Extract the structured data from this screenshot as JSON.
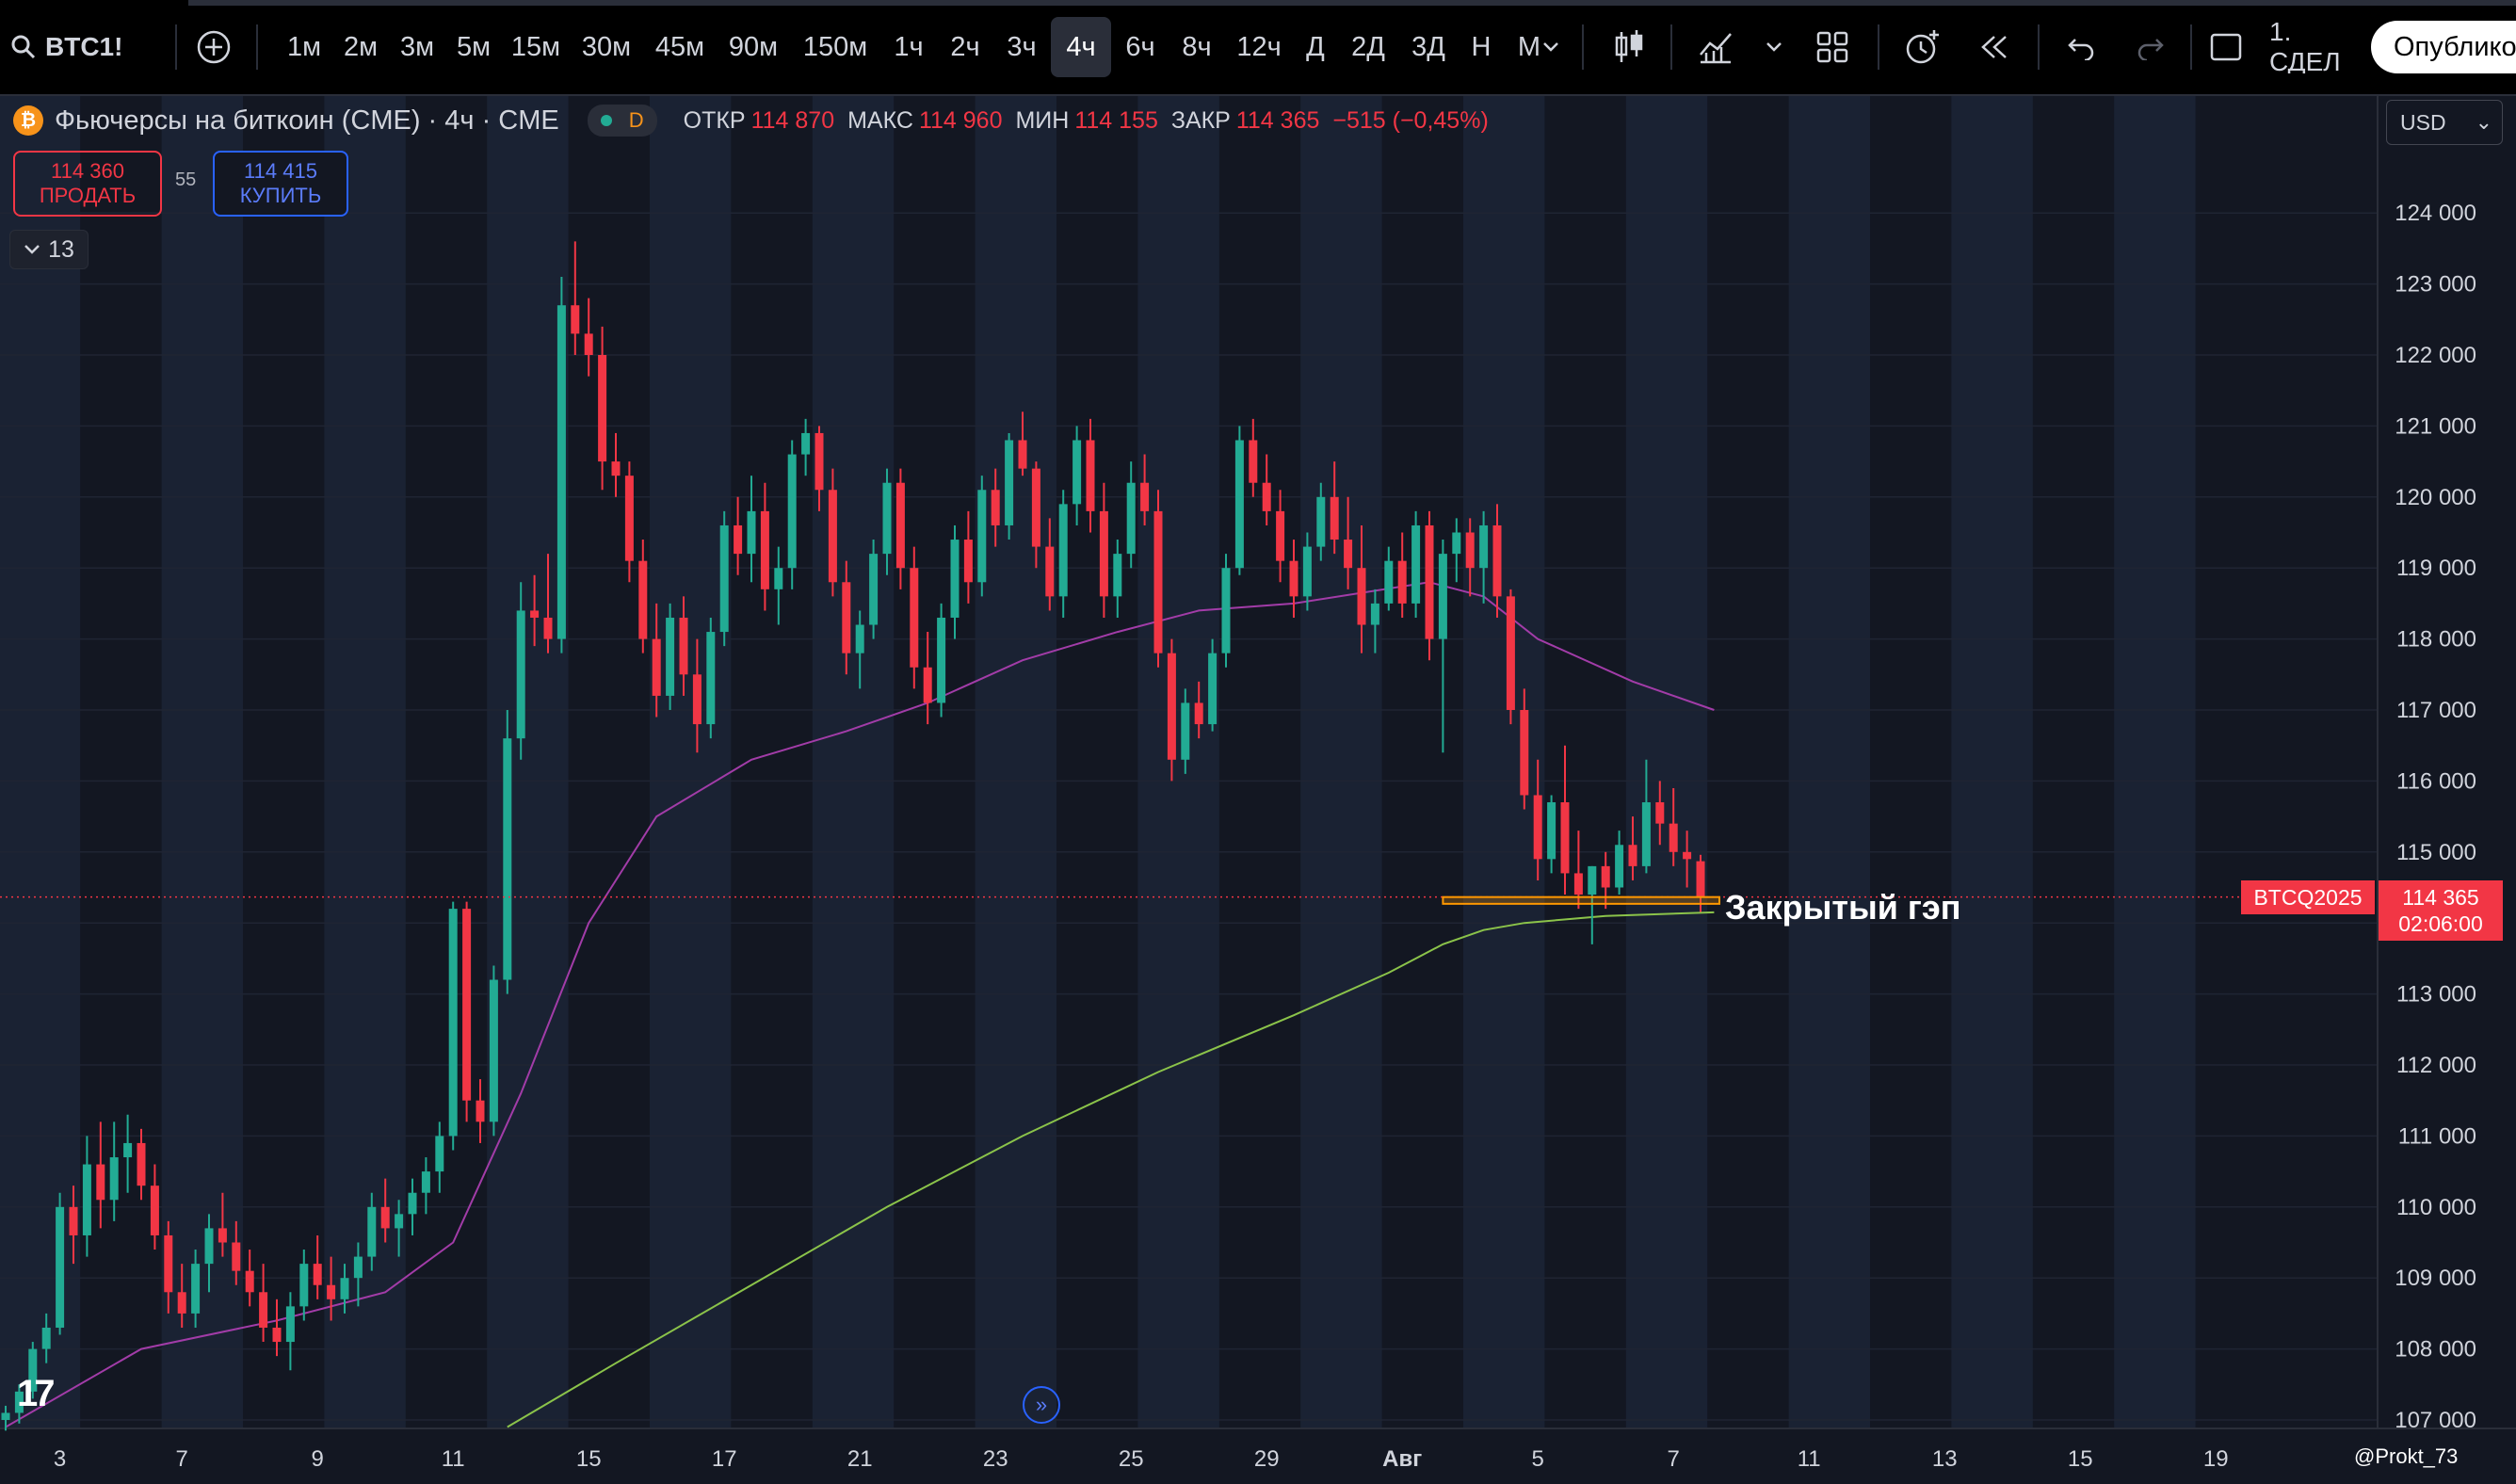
{
  "toolbar": {
    "symbol": "BTC1!",
    "timeframes": [
      "1м",
      "2м",
      "3м",
      "5м",
      "15м",
      "30м",
      "45м",
      "90м",
      "150м",
      "1ч",
      "2ч",
      "3ч",
      "4ч",
      "6ч",
      "8ч",
      "12ч",
      "Д",
      "2Д",
      "3Д",
      "Н",
      "М"
    ],
    "active_timeframe": "4ч",
    "layout_label": "1. СДЕЛ",
    "publish_label": "Опублико"
  },
  "legend": {
    "title": "Фьючерсы на биткоин (CME) · 4ч · CME",
    "session": "D",
    "open_label": "ОТКР",
    "open": "114 870",
    "high_label": "МАКС",
    "high": "114 960",
    "low_label": "МИН",
    "low": "114 155",
    "close_label": "ЗАКР",
    "close": "114 365",
    "change": "−515 (−0,45%)"
  },
  "trade": {
    "sell_price": "114 360",
    "sell_label": "ПРОДАТЬ",
    "spread": "55",
    "buy_price": "114 415",
    "buy_label": "КУПИТЬ"
  },
  "indicators_count": "13",
  "currency": "USD",
  "price_scale": {
    "symbol_tag": "BTCQ2025",
    "last_price": "114 365",
    "countdown": "02:06:00"
  },
  "annotation": "Закрытый гэп",
  "watermark": "@Prokt_73",
  "colors": {
    "up": "#22ab94",
    "down": "#f23645",
    "background": "#131722",
    "sma_fast": "#a23ca8",
    "sma_slow": "#8bc34a",
    "gap_box": "#ff9800"
  },
  "chart_data": {
    "type": "candlestick",
    "series_name": "BTC1!",
    "yticks": [
      107000,
      108000,
      109000,
      110000,
      111000,
      112000,
      113000,
      114000,
      115000,
      116000,
      117000,
      118000,
      119000,
      120000,
      121000,
      122000,
      123000,
      124000
    ],
    "ytick_labels": [
      "107 000",
      "108 000",
      "109 000",
      "110 000",
      "111 000",
      "112 000",
      "113 000",
      "",
      "115 000",
      "116 000",
      "117 000",
      "118 000",
      "119 000",
      "120 000",
      "121 000",
      "122 000",
      "123 000",
      "124 000"
    ],
    "xtick_labels": [
      {
        "i": 4,
        "label": "3"
      },
      {
        "i": 13,
        "label": "7"
      },
      {
        "i": 23,
        "label": "9"
      },
      {
        "i": 33,
        "label": "11"
      },
      {
        "i": 43,
        "label": "15"
      },
      {
        "i": 53,
        "label": "17"
      },
      {
        "i": 63,
        "label": "21"
      },
      {
        "i": 73,
        "label": "23"
      },
      {
        "i": 83,
        "label": "25"
      },
      {
        "i": 93,
        "label": "29"
      },
      {
        "i": 103,
        "label": "Авг"
      },
      {
        "i": 113,
        "label": "5"
      },
      {
        "i": 123,
        "label": "7"
      },
      {
        "i": 133,
        "label": "11"
      },
      {
        "i": 143,
        "label": "13"
      },
      {
        "i": 153,
        "label": "15"
      },
      {
        "i": 163,
        "label": "19"
      }
    ],
    "last_price": 114365,
    "gap_zone": {
      "from": 114270,
      "to": 114365
    },
    "candles": [
      [
        107000,
        107200,
        106850,
        107100
      ],
      [
        107100,
        107500,
        106950,
        107400
      ],
      [
        107400,
        108100,
        107300,
        108000
      ],
      [
        108000,
        108500,
        107800,
        108300
      ],
      [
        108300,
        110200,
        108200,
        110000
      ],
      [
        110000,
        110300,
        109200,
        109600
      ],
      [
        109600,
        111000,
        109300,
        110600
      ],
      [
        110600,
        111200,
        109700,
        110100
      ],
      [
        110100,
        111200,
        109800,
        110700
      ],
      [
        110700,
        111300,
        110200,
        110900
      ],
      [
        110900,
        111100,
        110100,
        110300
      ],
      [
        110300,
        110600,
        109400,
        109600
      ],
      [
        109600,
        109800,
        108500,
        108800
      ],
      [
        108800,
        109200,
        108300,
        108500
      ],
      [
        108500,
        109400,
        108300,
        109200
      ],
      [
        109200,
        109900,
        108800,
        109700
      ],
      [
        109700,
        110200,
        109300,
        109500
      ],
      [
        109500,
        109800,
        108900,
        109100
      ],
      [
        109100,
        109400,
        108600,
        108800
      ],
      [
        108800,
        109200,
        108100,
        108300
      ],
      [
        108300,
        108700,
        107900,
        108100
      ],
      [
        108100,
        108800,
        107700,
        108600
      ],
      [
        108600,
        109400,
        108400,
        109200
      ],
      [
        109200,
        109600,
        108700,
        108900
      ],
      [
        108900,
        109300,
        108400,
        108700
      ],
      [
        108700,
        109200,
        108500,
        109000
      ],
      [
        109000,
        109500,
        108600,
        109300
      ],
      [
        109300,
        110200,
        109100,
        110000
      ],
      [
        110000,
        110400,
        109500,
        109700
      ],
      [
        109700,
        110100,
        109300,
        109900
      ],
      [
        109900,
        110400,
        109600,
        110200
      ],
      [
        110200,
        110700,
        109900,
        110500
      ],
      [
        110500,
        111200,
        110200,
        111000
      ],
      [
        111000,
        114300,
        110800,
        114200
      ],
      [
        114200,
        114300,
        111200,
        111500
      ],
      [
        111500,
        111800,
        110900,
        111200
      ],
      [
        111200,
        113400,
        111000,
        113200
      ],
      [
        113200,
        117000,
        113000,
        116600
      ],
      [
        116600,
        118800,
        116300,
        118400
      ],
      [
        118400,
        118900,
        117900,
        118300
      ],
      [
        118300,
        119200,
        117800,
        118000
      ],
      [
        118000,
        123100,
        117800,
        122700
      ],
      [
        122700,
        123600,
        122000,
        122300
      ],
      [
        122300,
        122800,
        121700,
        122000
      ],
      [
        122000,
        122400,
        120100,
        120500
      ],
      [
        120500,
        120900,
        120000,
        120300
      ],
      [
        120300,
        120500,
        118800,
        119100
      ],
      [
        119100,
        119400,
        117800,
        118000
      ],
      [
        118000,
        118500,
        116900,
        117200
      ],
      [
        117200,
        118500,
        117000,
        118300
      ],
      [
        118300,
        118600,
        117200,
        117500
      ],
      [
        117500,
        118000,
        116400,
        116800
      ],
      [
        116800,
        118300,
        116600,
        118100
      ],
      [
        118100,
        119800,
        117900,
        119600
      ],
      [
        119600,
        120000,
        118900,
        119200
      ],
      [
        119200,
        120300,
        118800,
        119800
      ],
      [
        119800,
        120200,
        118400,
        118700
      ],
      [
        118700,
        119300,
        118200,
        119000
      ],
      [
        119000,
        120800,
        118700,
        120600
      ],
      [
        120600,
        121100,
        120300,
        120900
      ],
      [
        120900,
        121000,
        119800,
        120100
      ],
      [
        120100,
        120400,
        118600,
        118800
      ],
      [
        118800,
        119100,
        117500,
        117800
      ],
      [
        117800,
        118400,
        117300,
        118200
      ],
      [
        118200,
        119400,
        118000,
        119200
      ],
      [
        119200,
        120400,
        118900,
        120200
      ],
      [
        120200,
        120400,
        118700,
        119000
      ],
      [
        119000,
        119300,
        117300,
        117600
      ],
      [
        117600,
        118100,
        116800,
        117100
      ],
      [
        117100,
        118500,
        116900,
        118300
      ],
      [
        118300,
        119600,
        118000,
        119400
      ],
      [
        119400,
        119800,
        118500,
        118800
      ],
      [
        118800,
        120300,
        118600,
        120100
      ],
      [
        120100,
        120400,
        119300,
        119600
      ],
      [
        119600,
        120900,
        119400,
        120800
      ],
      [
        120800,
        121200,
        120300,
        120400
      ],
      [
        120400,
        120500,
        119000,
        119300
      ],
      [
        119300,
        119700,
        118400,
        118600
      ],
      [
        118600,
        120100,
        118300,
        119900
      ],
      [
        119900,
        121000,
        119600,
        120800
      ],
      [
        120800,
        121100,
        119500,
        119800
      ],
      [
        119800,
        120200,
        118300,
        118600
      ],
      [
        118600,
        119400,
        118300,
        119200
      ],
      [
        119200,
        120500,
        119000,
        120200
      ],
      [
        120200,
        120600,
        119600,
        119800
      ],
      [
        119800,
        120100,
        117600,
        117800
      ],
      [
        117800,
        118000,
        116000,
        116300
      ],
      [
        116300,
        117300,
        116100,
        117100
      ],
      [
        117100,
        117400,
        116600,
        116800
      ],
      [
        116800,
        118000,
        116700,
        117800
      ],
      [
        117800,
        119200,
        117600,
        119000
      ],
      [
        119000,
        121000,
        118900,
        120800
      ],
      [
        120800,
        121100,
        120000,
        120200
      ],
      [
        120200,
        120600,
        119600,
        119800
      ],
      [
        119800,
        120100,
        118800,
        119100
      ],
      [
        119100,
        119400,
        118300,
        118600
      ],
      [
        118600,
        119500,
        118400,
        119300
      ],
      [
        119300,
        120200,
        119100,
        120000
      ],
      [
        120000,
        120500,
        119200,
        119400
      ],
      [
        119400,
        120000,
        118700,
        119000
      ],
      [
        119000,
        119600,
        117800,
        118200
      ],
      [
        118200,
        118700,
        117800,
        118500
      ],
      [
        118500,
        119300,
        118400,
        119100
      ],
      [
        119100,
        119500,
        118300,
        118500
      ],
      [
        118500,
        119800,
        118300,
        119600
      ],
      [
        119600,
        119800,
        117700,
        118000
      ],
      [
        118000,
        119400,
        116400,
        119200
      ],
      [
        119200,
        119700,
        118800,
        119500
      ],
      [
        119500,
        119700,
        118600,
        119000
      ],
      [
        119000,
        119800,
        118500,
        119600
      ],
      [
        119600,
        119900,
        118300,
        118600
      ],
      [
        118600,
        118700,
        116800,
        117000
      ],
      [
        117000,
        117300,
        115600,
        115800
      ],
      [
        115800,
        116300,
        114600,
        114900
      ],
      [
        114900,
        115800,
        114700,
        115700
      ],
      [
        115700,
        116500,
        114400,
        114700
      ],
      [
        114700,
        115300,
        114200,
        114400
      ],
      [
        114400,
        114800,
        113700,
        114800
      ],
      [
        114800,
        115000,
        114200,
        114500
      ],
      [
        114500,
        115300,
        114400,
        115100
      ],
      [
        115100,
        115500,
        114600,
        114800
      ],
      [
        114800,
        116300,
        114700,
        115700
      ],
      [
        115700,
        116000,
        115100,
        115400
      ],
      [
        115400,
        115900,
        114800,
        115000
      ],
      [
        115000,
        115300,
        114500,
        114900
      ],
      [
        114870,
        114960,
        114155,
        114365
      ]
    ],
    "sma_fast": [
      [
        0,
        106900
      ],
      [
        10,
        108000
      ],
      [
        20,
        108400
      ],
      [
        28,
        108800
      ],
      [
        33,
        109500
      ],
      [
        38,
        111600
      ],
      [
        43,
        114000
      ],
      [
        48,
        115500
      ],
      [
        55,
        116300
      ],
      [
        62,
        116700
      ],
      [
        68,
        117100
      ],
      [
        75,
        117700
      ],
      [
        82,
        118100
      ],
      [
        88,
        118400
      ],
      [
        95,
        118500
      ],
      [
        105,
        118800
      ],
      [
        109,
        118600
      ],
      [
        113,
        118000
      ],
      [
        120,
        117400
      ],
      [
        126,
        117000
      ]
    ],
    "sma_slow": [
      [
        37,
        106900
      ],
      [
        45,
        107800
      ],
      [
        55,
        108900
      ],
      [
        65,
        110000
      ],
      [
        75,
        111000
      ],
      [
        85,
        111900
      ],
      [
        95,
        112700
      ],
      [
        102,
        113300
      ],
      [
        106,
        113700
      ],
      [
        109,
        113900
      ],
      [
        112,
        114000
      ],
      [
        118,
        114100
      ],
      [
        126,
        114150
      ]
    ]
  }
}
